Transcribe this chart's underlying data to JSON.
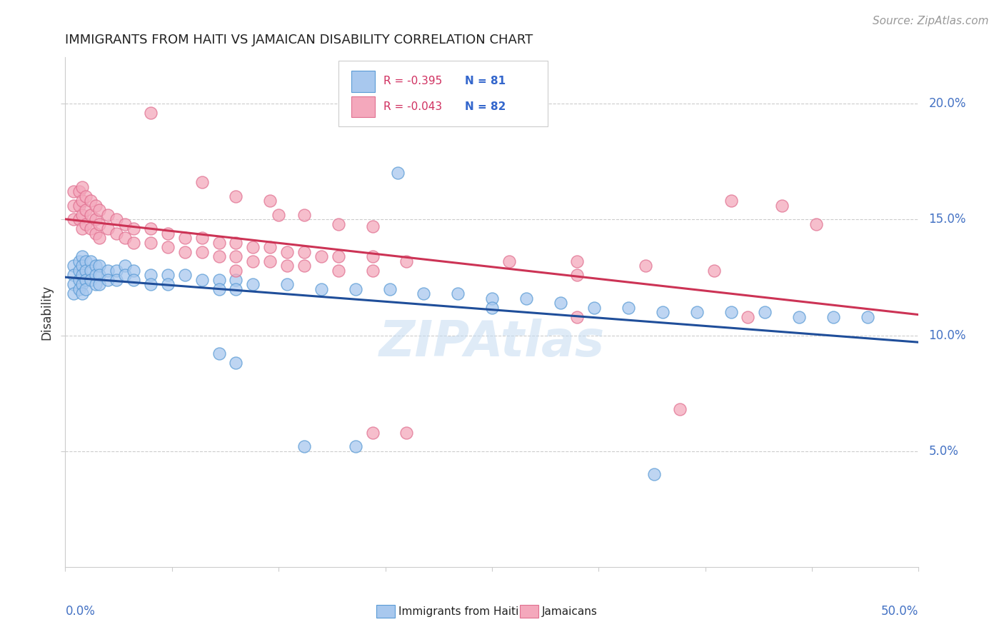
{
  "title": "IMMIGRANTS FROM HAITI VS JAMAICAN DISABILITY CORRELATION CHART",
  "source": "Source: ZipAtlas.com",
  "ylabel": "Disability",
  "xlim": [
    0.0,
    0.5
  ],
  "ylim": [
    0.0,
    0.22
  ],
  "ytick_vals": [
    0.05,
    0.1,
    0.15,
    0.2
  ],
  "ytick_labels": [
    "5.0%",
    "10.0%",
    "15.0%",
    "20.0%"
  ],
  "xtick_vals": [
    0.0,
    0.0625,
    0.125,
    0.1875,
    0.25,
    0.3125,
    0.375,
    0.4375,
    0.5
  ],
  "legend_r1": "R = -0.395",
  "legend_n1": "N = 81",
  "legend_r2": "R = -0.043",
  "legend_n2": "N = 82",
  "haiti_color": "#A8C8EE",
  "jamaican_color": "#F4A8BC",
  "haiti_edge": "#5A9BD5",
  "jamaican_edge": "#E07090",
  "trendline_haiti": "#1F4E9A",
  "trendline_jamaican": "#CC3355",
  "haiti_scatter": [
    [
      0.005,
      0.13
    ],
    [
      0.005,
      0.126
    ],
    [
      0.005,
      0.122
    ],
    [
      0.005,
      0.118
    ],
    [
      0.008,
      0.132
    ],
    [
      0.008,
      0.128
    ],
    [
      0.008,
      0.124
    ],
    [
      0.008,
      0.12
    ],
    [
      0.01,
      0.134
    ],
    [
      0.01,
      0.13
    ],
    [
      0.01,
      0.126
    ],
    [
      0.01,
      0.122
    ],
    [
      0.01,
      0.118
    ],
    [
      0.012,
      0.132
    ],
    [
      0.012,
      0.128
    ],
    [
      0.012,
      0.124
    ],
    [
      0.012,
      0.12
    ],
    [
      0.015,
      0.132
    ],
    [
      0.015,
      0.128
    ],
    [
      0.015,
      0.124
    ],
    [
      0.018,
      0.13
    ],
    [
      0.018,
      0.126
    ],
    [
      0.018,
      0.122
    ],
    [
      0.02,
      0.13
    ],
    [
      0.02,
      0.126
    ],
    [
      0.02,
      0.122
    ],
    [
      0.025,
      0.128
    ],
    [
      0.025,
      0.124
    ],
    [
      0.03,
      0.128
    ],
    [
      0.03,
      0.124
    ],
    [
      0.035,
      0.13
    ],
    [
      0.035,
      0.126
    ],
    [
      0.04,
      0.128
    ],
    [
      0.04,
      0.124
    ],
    [
      0.05,
      0.126
    ],
    [
      0.05,
      0.122
    ],
    [
      0.06,
      0.126
    ],
    [
      0.06,
      0.122
    ],
    [
      0.07,
      0.126
    ],
    [
      0.08,
      0.124
    ],
    [
      0.09,
      0.124
    ],
    [
      0.09,
      0.12
    ],
    [
      0.1,
      0.124
    ],
    [
      0.1,
      0.12
    ],
    [
      0.11,
      0.122
    ],
    [
      0.13,
      0.122
    ],
    [
      0.15,
      0.12
    ],
    [
      0.17,
      0.12
    ],
    [
      0.19,
      0.12
    ],
    [
      0.21,
      0.118
    ],
    [
      0.23,
      0.118
    ],
    [
      0.25,
      0.116
    ],
    [
      0.25,
      0.112
    ],
    [
      0.27,
      0.116
    ],
    [
      0.29,
      0.114
    ],
    [
      0.31,
      0.112
    ],
    [
      0.33,
      0.112
    ],
    [
      0.35,
      0.11
    ],
    [
      0.37,
      0.11
    ],
    [
      0.39,
      0.11
    ],
    [
      0.41,
      0.11
    ],
    [
      0.43,
      0.108
    ],
    [
      0.45,
      0.108
    ],
    [
      0.47,
      0.108
    ],
    [
      0.195,
      0.17
    ],
    [
      0.14,
      0.052
    ],
    [
      0.17,
      0.052
    ],
    [
      0.345,
      0.04
    ],
    [
      0.09,
      0.092
    ],
    [
      0.1,
      0.088
    ]
  ],
  "jamaican_scatter": [
    [
      0.005,
      0.162
    ],
    [
      0.005,
      0.156
    ],
    [
      0.005,
      0.15
    ],
    [
      0.008,
      0.162
    ],
    [
      0.008,
      0.156
    ],
    [
      0.008,
      0.15
    ],
    [
      0.01,
      0.164
    ],
    [
      0.01,
      0.158
    ],
    [
      0.01,
      0.152
    ],
    [
      0.01,
      0.146
    ],
    [
      0.012,
      0.16
    ],
    [
      0.012,
      0.154
    ],
    [
      0.012,
      0.148
    ],
    [
      0.015,
      0.158
    ],
    [
      0.015,
      0.152
    ],
    [
      0.015,
      0.146
    ],
    [
      0.018,
      0.156
    ],
    [
      0.018,
      0.15
    ],
    [
      0.018,
      0.144
    ],
    [
      0.02,
      0.154
    ],
    [
      0.02,
      0.148
    ],
    [
      0.02,
      0.142
    ],
    [
      0.025,
      0.152
    ],
    [
      0.025,
      0.146
    ],
    [
      0.03,
      0.15
    ],
    [
      0.03,
      0.144
    ],
    [
      0.035,
      0.148
    ],
    [
      0.035,
      0.142
    ],
    [
      0.04,
      0.146
    ],
    [
      0.04,
      0.14
    ],
    [
      0.05,
      0.146
    ],
    [
      0.05,
      0.14
    ],
    [
      0.06,
      0.144
    ],
    [
      0.06,
      0.138
    ],
    [
      0.07,
      0.142
    ],
    [
      0.07,
      0.136
    ],
    [
      0.08,
      0.142
    ],
    [
      0.08,
      0.136
    ],
    [
      0.09,
      0.14
    ],
    [
      0.09,
      0.134
    ],
    [
      0.1,
      0.14
    ],
    [
      0.1,
      0.134
    ],
    [
      0.1,
      0.128
    ],
    [
      0.11,
      0.138
    ],
    [
      0.11,
      0.132
    ],
    [
      0.12,
      0.138
    ],
    [
      0.12,
      0.132
    ],
    [
      0.13,
      0.136
    ],
    [
      0.13,
      0.13
    ],
    [
      0.14,
      0.136
    ],
    [
      0.14,
      0.13
    ],
    [
      0.15,
      0.134
    ],
    [
      0.16,
      0.134
    ],
    [
      0.16,
      0.128
    ],
    [
      0.18,
      0.134
    ],
    [
      0.18,
      0.128
    ],
    [
      0.2,
      0.132
    ],
    [
      0.26,
      0.132
    ],
    [
      0.3,
      0.132
    ],
    [
      0.3,
      0.126
    ],
    [
      0.34,
      0.13
    ],
    [
      0.38,
      0.128
    ],
    [
      0.05,
      0.196
    ],
    [
      0.08,
      0.166
    ],
    [
      0.1,
      0.16
    ],
    [
      0.12,
      0.158
    ],
    [
      0.125,
      0.152
    ],
    [
      0.14,
      0.152
    ],
    [
      0.16,
      0.148
    ],
    [
      0.18,
      0.147
    ],
    [
      0.39,
      0.158
    ],
    [
      0.42,
      0.156
    ],
    [
      0.44,
      0.148
    ],
    [
      0.3,
      0.108
    ],
    [
      0.18,
      0.058
    ],
    [
      0.2,
      0.058
    ],
    [
      0.36,
      0.068
    ],
    [
      0.4,
      0.108
    ]
  ]
}
